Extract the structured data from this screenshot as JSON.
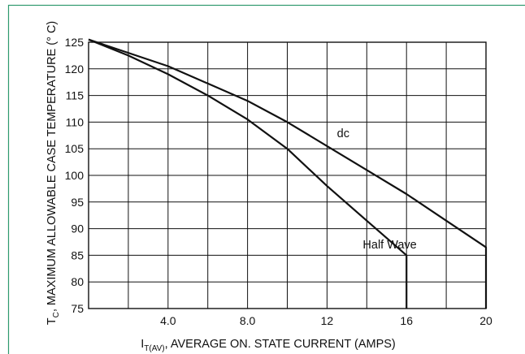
{
  "chart_data": {
    "type": "line",
    "xlabel_main": "I",
    "xlabel_sub": "T(AV)",
    "xlabel_rest": ", AVERAGE ON. STATE CURRENT (AMPS)",
    "ylabel_main": "T",
    "ylabel_sub": "C",
    "ylabel_rest": ", MAXIMUM  ALLOWABLE  CASE TEMPERATURE (° C)",
    "xlim": [
      0,
      20
    ],
    "ylim": [
      75,
      125
    ],
    "x_grid": [
      2,
      4,
      6,
      8,
      10,
      12,
      14,
      16,
      18,
      20
    ],
    "y_ticks": [
      75,
      80,
      85,
      90,
      95,
      100,
      105,
      110,
      115,
      120,
      125
    ],
    "x_ticks": [
      {
        "value": 4,
        "label": "4.0"
      },
      {
        "value": 8,
        "label": "8.0"
      },
      {
        "value": 12,
        "label": "12"
      },
      {
        "value": 16,
        "label": "16"
      },
      {
        "value": 20,
        "label": "20"
      }
    ],
    "grid": true,
    "series": [
      {
        "name": "dc",
        "x": [
          0,
          4,
          8,
          10,
          12,
          14,
          16,
          18,
          20,
          20
        ],
        "y": [
          125.5,
          120.5,
          114,
          110,
          105.5,
          101,
          96.5,
          91.5,
          86.5,
          75
        ]
      },
      {
        "name": "Half Wave",
        "x": [
          0,
          2,
          4,
          6,
          8,
          10,
          12,
          14,
          16,
          16
        ],
        "y": [
          125.5,
          122.5,
          119,
          115,
          110.5,
          105,
          98,
          91.5,
          85,
          75
        ]
      }
    ],
    "annotations": [
      {
        "text": "dc",
        "x": 12.5,
        "y": 107.2
      },
      {
        "text": "Half Wave",
        "x": 13.8,
        "y": 86.3
      }
    ]
  },
  "colors": {
    "frame": "#2e9a6e",
    "grid": "#111111",
    "line": "#111111"
  }
}
